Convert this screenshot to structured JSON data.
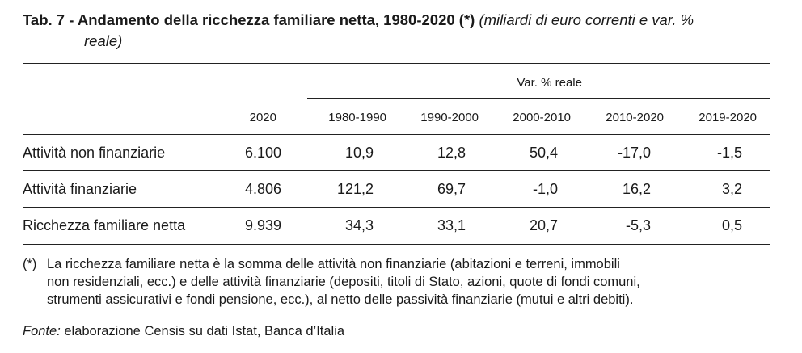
{
  "title": {
    "bold": "Tab. 7 - Andamento della ricchezza familiare netta, 1980-2020 (*)",
    "italic_line1": "(miliardi di euro correnti e var. %",
    "italic_line2": "reale)"
  },
  "table": {
    "group_header": "Var. % reale",
    "columns": [
      "2020",
      "1980-1990",
      "1990-2000",
      "2000-2010",
      "2010-2020",
      "2019-2020"
    ],
    "rows": [
      {
        "label": "Attività non finanziarie",
        "values": [
          "6.100",
          "10,9",
          "12,8",
          "50,4",
          "-17,0",
          "-1,5"
        ]
      },
      {
        "label": "Attività finanziarie",
        "values": [
          "4.806",
          "121,2",
          "69,7",
          "-1,0",
          "16,2",
          "3,2"
        ]
      },
      {
        "label": "Ricchezza familiare netta",
        "values": [
          "9.939",
          "34,3",
          "33,1",
          "20,7",
          "-5,3",
          "0,5"
        ]
      }
    ]
  },
  "footnote": {
    "mark": "(*)",
    "line1": "La ricchezza familiare netta è la somma delle attività non finanziarie (abitazioni e terreni, immobili",
    "line2": "non residenziali, ecc.) e delle attività finanziarie (depositi, titoli di Stato, azioni, quote di fondi comuni,",
    "line3": "strumenti assicurativi e fondi pensione, ecc.), al netto delle passività finanziarie (mutui e altri debiti)."
  },
  "source": {
    "label": "Fonte:",
    "text": " elaborazione Censis su dati Istat, Banca d’Italia"
  }
}
